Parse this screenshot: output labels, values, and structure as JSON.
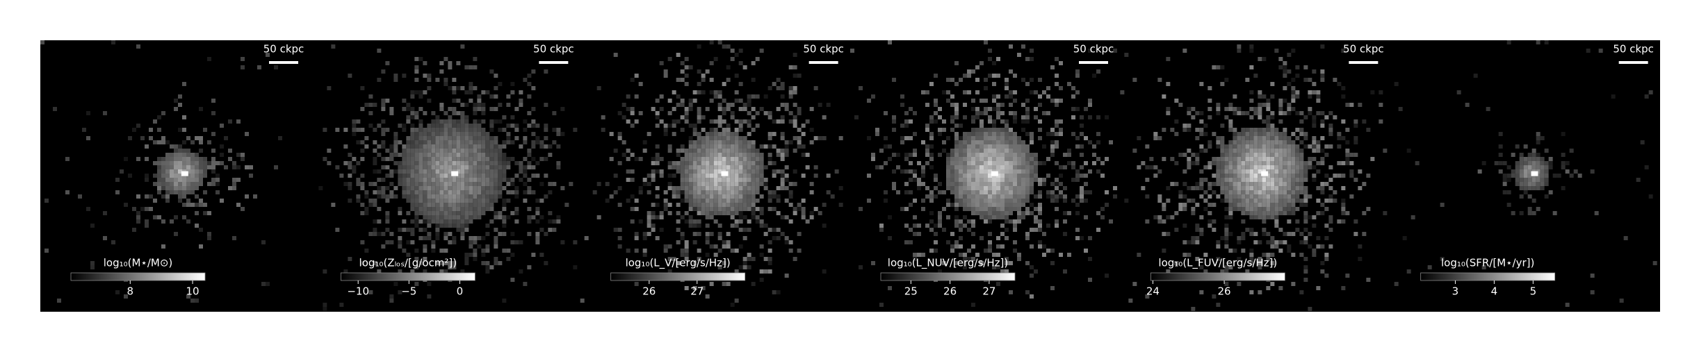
{
  "chart_data": [
    {
      "type": "image",
      "label": "log₁₀(M⋆/M⊙)",
      "annotation": "50 ckpc",
      "xlim": [
        6.1,
        10.4
      ],
      "xticks": [
        8,
        10
      ]
    },
    {
      "type": "image",
      "label": "log₁₀(Zₗₒₛ/[g/ocm²])",
      "annotation": "50 ckpc",
      "xlim": [
        -11.7,
        1.5
      ],
      "xticks": [
        {
          "value": -10,
          "label": "−10"
        },
        {
          "value": -5,
          "label": "−5"
        },
        0
      ]
    },
    {
      "type": "image",
      "label": "log₁₀(L_V/[erg/s/Hz])",
      "annotation": "50 ckpc",
      "xlim": [
        25.2,
        28.0
      ],
      "xticks": [
        26,
        27
      ]
    },
    {
      "type": "image",
      "label": "log₁₀(L_NUV/[erg/s/Hz])",
      "annotation": "50 ckpc",
      "xlim": [
        24.23,
        27.66
      ],
      "xticks": [
        25,
        26,
        27
      ]
    },
    {
      "type": "image",
      "label": "log₁₀(L_FUV/[erg/s/Hz])",
      "annotation": "50 ckpc",
      "xlim": [
        23.94,
        27.7
      ],
      "xticks": [
        24,
        26
      ]
    },
    {
      "type": "image",
      "label": "log₁₀(SFR/[M⋆/yr])",
      "annotation": "50 ckpc",
      "xlim": [
        2.11,
        5.56
      ],
      "xticks": [
        3,
        4,
        5
      ]
    }
  ]
}
